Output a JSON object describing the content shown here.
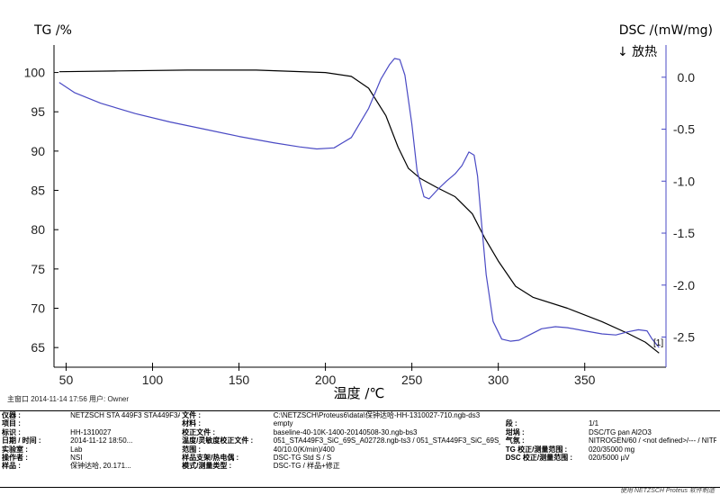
{
  "chart_data": {
    "type": "line",
    "y_left_label": "TG /%",
    "y_right_label": "DSC /(mW/mg)",
    "exo_marker": "↓ 放热",
    "xlabel": "温度 /℃",
    "xlim": [
      43,
      397
    ],
    "ylim_left": [
      62.5,
      103.5
    ],
    "ylim_right": [
      -2.79,
      0.31
    ],
    "x_ticks": [
      50,
      100,
      150,
      200,
      250,
      300,
      350
    ],
    "y_left_ticks": [
      65,
      70,
      75,
      80,
      85,
      90,
      95,
      100
    ],
    "y_right_ticks": [
      {
        "value": 0.0,
        "label": "0.0"
      },
      {
        "value": -0.5,
        "label": "-0.5"
      },
      {
        "value": -1.0,
        "label": "-1.0"
      },
      {
        "value": -1.5,
        "label": "-1.5"
      },
      {
        "value": -2.0,
        "label": "-2.0"
      },
      {
        "value": -2.5,
        "label": "-2.5"
      }
    ],
    "series": [
      {
        "axis": "left",
        "color": "#000000",
        "x": [
          46,
          80,
          120,
          160,
          200,
          215,
          225,
          235,
          242,
          248,
          255,
          265,
          275,
          285,
          292,
          300,
          310,
          320,
          340,
          360,
          375,
          385,
          393
        ],
        "values": [
          100.1,
          100.2,
          100.3,
          100.3,
          100.0,
          99.5,
          98.0,
          94.5,
          90.5,
          87.8,
          86.5,
          85.3,
          84.2,
          82.0,
          79.0,
          76.0,
          72.8,
          71.4,
          70.0,
          68.3,
          66.8,
          65.7,
          64.3
        ]
      },
      {
        "axis": "right",
        "color": "#4a4ac4",
        "x": [
          46,
          55,
          70,
          90,
          110,
          130,
          150,
          170,
          185,
          195,
          205,
          215,
          225,
          232,
          237,
          240,
          243,
          246,
          250,
          253,
          257,
          260,
          265,
          270,
          275,
          279,
          283,
          286,
          288,
          290,
          293,
          297,
          302,
          307,
          312,
          318,
          325,
          333,
          340,
          350,
          360,
          368,
          375,
          381,
          386,
          389,
          393
        ],
        "values": [
          -0.05,
          -0.15,
          -0.25,
          -0.35,
          -0.43,
          -0.5,
          -0.57,
          -0.63,
          -0.67,
          -0.69,
          -0.68,
          -0.58,
          -0.3,
          -0.02,
          0.12,
          0.18,
          0.17,
          0.02,
          -0.45,
          -0.9,
          -1.15,
          -1.17,
          -1.08,
          -1.0,
          -0.93,
          -0.85,
          -0.72,
          -0.75,
          -0.95,
          -1.35,
          -1.9,
          -2.35,
          -2.52,
          -2.54,
          -2.53,
          -2.48,
          -2.42,
          -2.4,
          -2.41,
          -2.44,
          -2.47,
          -2.48,
          -2.45,
          -2.43,
          -2.44,
          -2.52,
          -2.6
        ]
      }
    ],
    "grid": false
  },
  "end_label": "[1]",
  "meta_line": "主窗口  2014-11-14 17:56  用户: Owner",
  "info_rows": [
    [
      "仪器 :",
      "NETZSCH STA 449F3 STA449F3A-0674-M",
      "文件 :",
      "C:\\NETZSCH\\Proteus6\\data\\保钟达哈-HH-1310027-710.ngb-ds3",
      "",
      "",
      "",
      ""
    ],
    [
      "项目 :",
      "",
      "材料 :",
      "empty",
      "",
      "段 :",
      "1/1",
      ""
    ],
    [
      "标识 :",
      "HH-1310027",
      "校正文件 :",
      "baseline-40-10K-1400-20140508-30.ngb-bs3",
      "",
      "坩埚 :",
      "DSC/TG pan Al2O3",
      ""
    ],
    [
      "日期 / 时间 :",
      "2014-11-12 18:50...",
      "温度/灵敏度校正文件 :",
      "051_STA449F3_SiC_69S_A02728.ngb-ts3 / 051_STA449F3_SiC_69S_A02728.n...",
      "",
      "气氛 :",
      "NITROGEN/60 / <not defined>/--- / NITROGE...",
      ""
    ],
    [
      "实验室 :",
      "Lab",
      "范围 :",
      "40/10.0(K/min)/400",
      "",
      "TG 校正/测量范围 :",
      "020/35000 mg",
      ""
    ],
    [
      "操作者 :",
      "NSI",
      "样品支架/热电偶 :",
      "DSC-TG Std S / S",
      "",
      "DSC 校正/测量范围 :",
      "020/5000 µV",
      ""
    ],
    [
      "样品 :",
      "保钟达哈, 20.171...",
      "模式/测量类型 :",
      "DSC-TG / 样品+修正",
      "",
      "",
      "",
      ""
    ]
  ],
  "footer": "使用 NETZSCH Proteus 软件制造"
}
